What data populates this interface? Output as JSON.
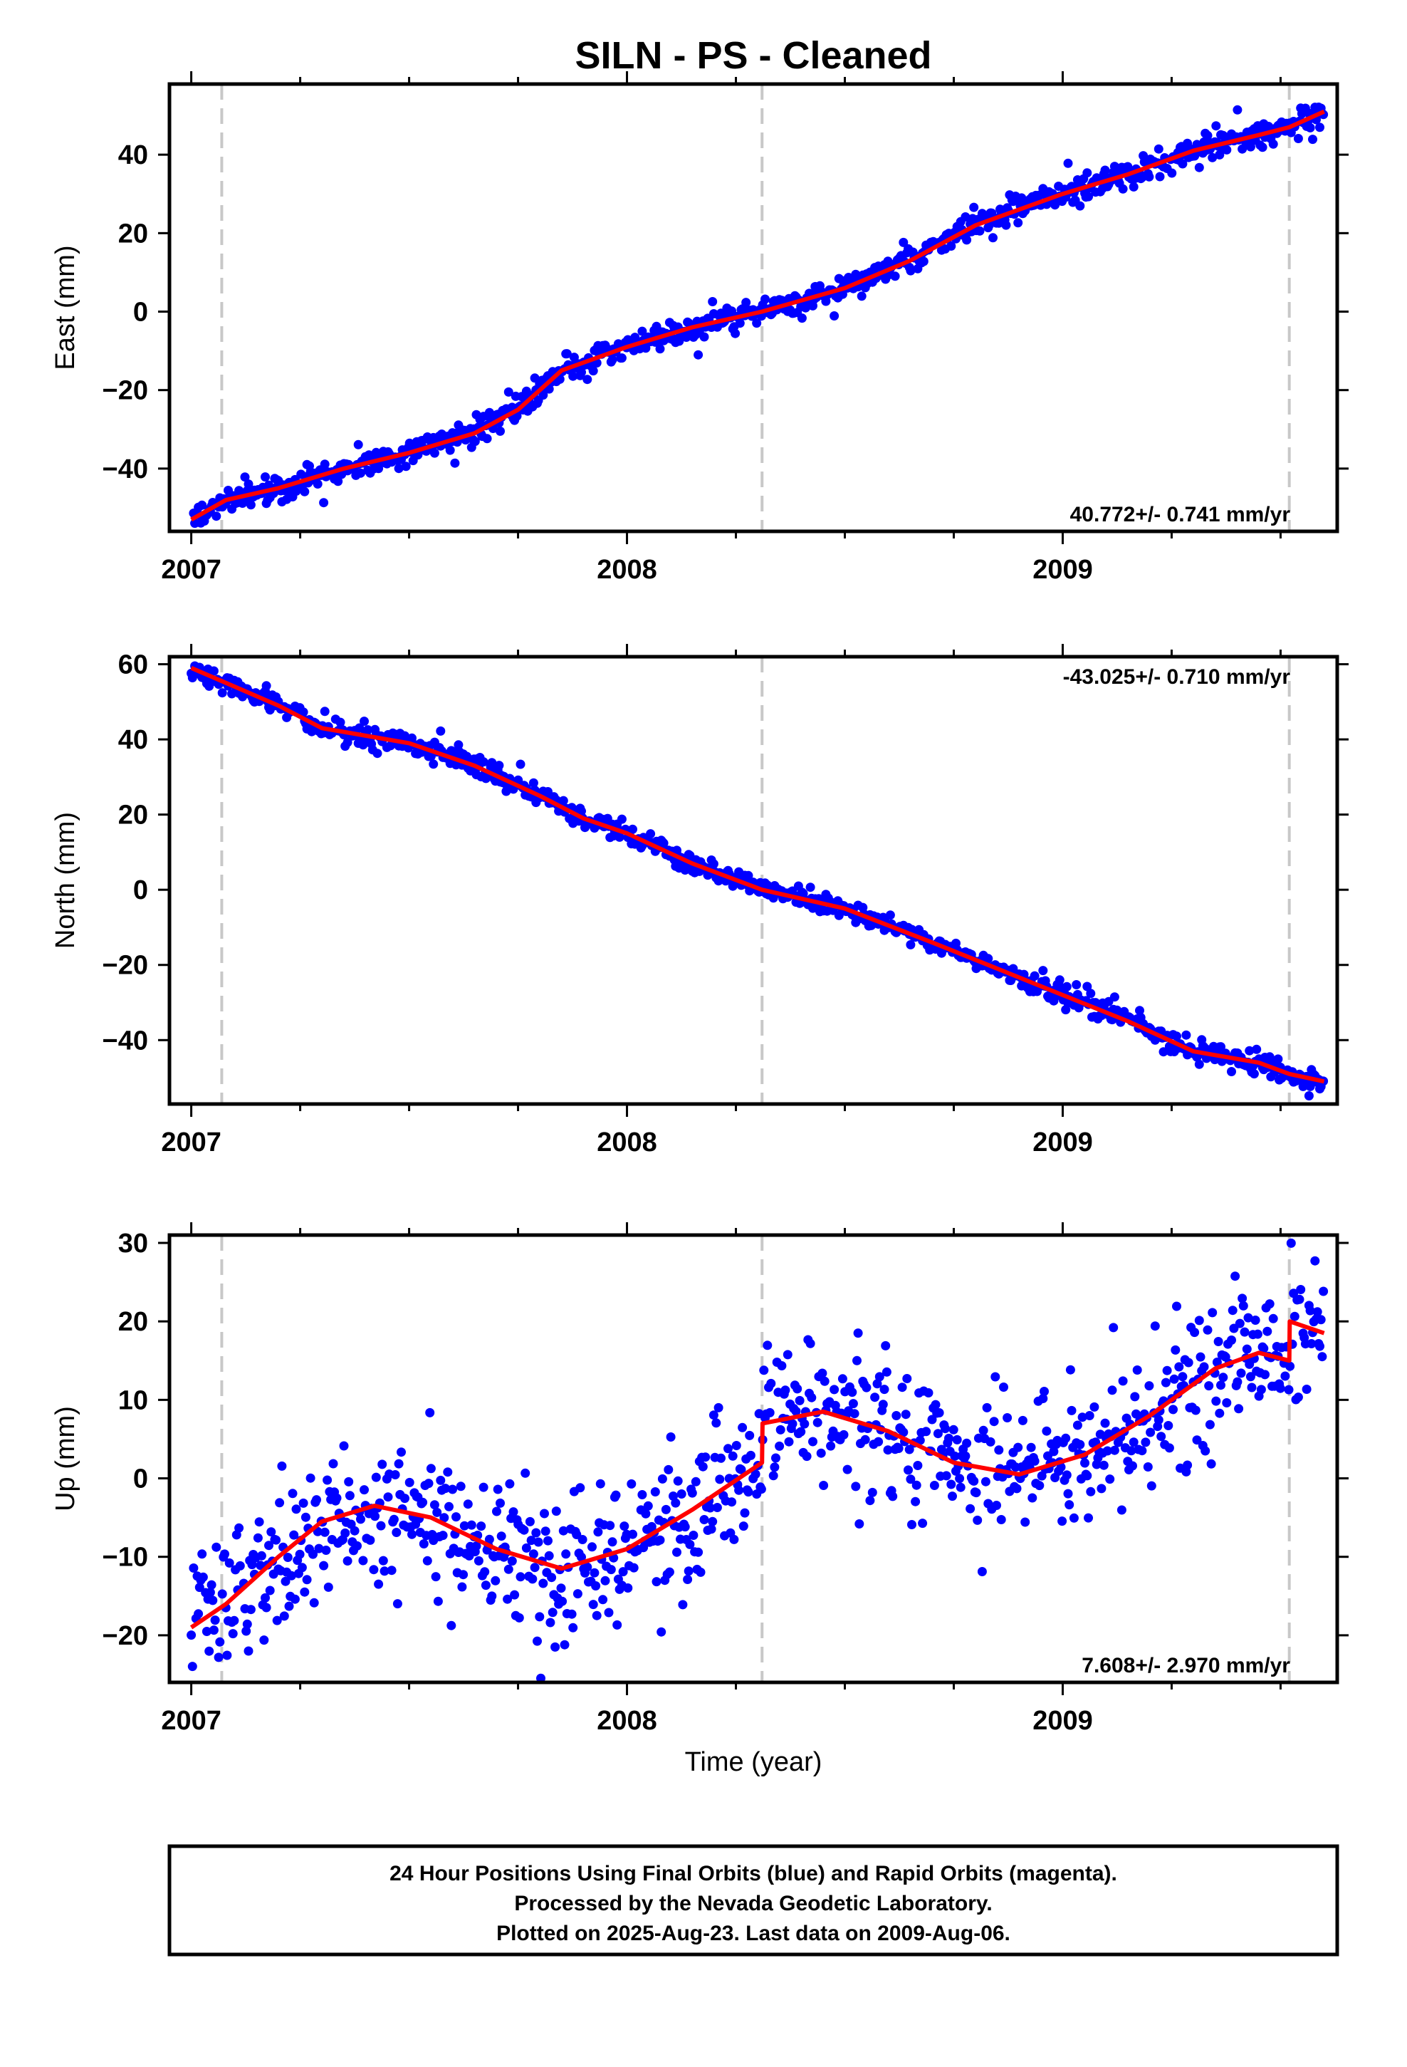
{
  "title": "SILN  - PS - Cleaned",
  "colors": {
    "final_orbits": "#0000ff",
    "model": "#ff0000",
    "breaks": "#c8c8c8",
    "frame": "#000000"
  },
  "footer": {
    "lines": [
      "24 Hour Positions Using Final Orbits (blue) and Rapid Orbits (magenta).",
      "Processed by the Nevada Geodetic Laboratory.",
      "Plotted on 2025-Aug-23. Last data on 2009-Aug-06."
    ]
  },
  "chart_data": [
    {
      "type": "scatter",
      "panel": "east",
      "ylabel": "East (mm)",
      "xlabel": "",
      "rate_label": "40.772+/- 0.741 mm/yr",
      "rate_position": "bottom-right",
      "xlim": [
        2006.95,
        2009.63
      ],
      "ylim": [
        -56,
        58
      ],
      "xticks": [
        2007,
        2008,
        2009
      ],
      "xtick_labels": [
        "2007",
        "2008",
        "2009"
      ],
      "yticks": [
        -40,
        -20,
        0,
        20,
        40
      ],
      "ytick_labels": [
        "−40",
        "−20",
        "0",
        "20",
        "40"
      ],
      "breaks": [
        2007.07,
        2008.31,
        2009.52
      ],
      "model": {
        "x": [
          2007.0,
          2007.08,
          2007.2,
          2007.35,
          2007.5,
          2007.65,
          2007.75,
          2007.85,
          2008.0,
          2008.15,
          2008.31,
          2008.5,
          2008.65,
          2008.8,
          2009.0,
          2009.15,
          2009.3,
          2009.45,
          2009.52,
          2009.6
        ],
        "y": [
          -53,
          -48,
          -45,
          -40,
          -36,
          -31,
          -25,
          -15,
          -9,
          -4,
          0,
          6,
          13,
          22,
          30,
          35,
          41,
          45,
          47,
          51
        ]
      },
      "series": [
        {
          "name": "Final Orbits",
          "noise_mm": 1.6,
          "outlier_rate": 0.03,
          "outlier_mm": 4
        }
      ]
    },
    {
      "type": "scatter",
      "panel": "north",
      "ylabel": "North (mm)",
      "xlabel": "",
      "rate_label": "-43.025+/- 0.710 mm/yr",
      "rate_position": "top-right",
      "xlim": [
        2006.95,
        2009.63
      ],
      "ylim": [
        -57,
        62
      ],
      "xticks": [
        2007,
        2008,
        2009
      ],
      "xtick_labels": [
        "2007",
        "2008",
        "2009"
      ],
      "yticks": [
        -40,
        -20,
        0,
        20,
        40,
        60
      ],
      "ytick_labels": [
        "−40",
        "−20",
        "0",
        "20",
        "40",
        "60"
      ],
      "breaks": [
        2007.07,
        2008.31,
        2009.52
      ],
      "model": {
        "x": [
          2007.0,
          2007.08,
          2007.2,
          2007.3,
          2007.5,
          2007.65,
          2007.8,
          2007.9,
          2008.0,
          2008.15,
          2008.31,
          2008.5,
          2008.7,
          2008.85,
          2009.0,
          2009.15,
          2009.3,
          2009.45,
          2009.52,
          2009.6
        ],
        "y": [
          59,
          55,
          49,
          43,
          39,
          33,
          25,
          19,
          15,
          7,
          0,
          -5,
          -14,
          -21,
          -28,
          -35,
          -43,
          -46,
          -49,
          -51
        ]
      },
      "series": [
        {
          "name": "Final Orbits",
          "noise_mm": 1.3,
          "outlier_rate": 0.03,
          "outlier_mm": 3
        }
      ]
    },
    {
      "type": "scatter",
      "panel": "up",
      "ylabel": "Up (mm)",
      "xlabel": "Time (year)",
      "rate_label": "7.608+/- 2.970 mm/yr",
      "rate_position": "bottom-right",
      "xlim": [
        2006.95,
        2009.63
      ],
      "ylim": [
        -26,
        31
      ],
      "xticks": [
        2007,
        2008,
        2009
      ],
      "xtick_labels": [
        "2007",
        "2008",
        "2009"
      ],
      "yticks": [
        -20,
        -10,
        0,
        10,
        20,
        30
      ],
      "ytick_labels": [
        "−20",
        "−10",
        "0",
        "10",
        "20",
        "30"
      ],
      "breaks": [
        2007.07,
        2008.31,
        2009.52
      ],
      "model": {
        "x": [
          2007.0,
          2007.08,
          2007.2,
          2007.3,
          2007.42,
          2007.55,
          2007.7,
          2007.85,
          2008.0,
          2008.15,
          2008.31,
          2008.311,
          2008.45,
          2008.6,
          2008.75,
          2008.9,
          2009.05,
          2009.2,
          2009.35,
          2009.45,
          2009.52,
          2009.521,
          2009.6
        ],
        "y": [
          -19,
          -16,
          -10,
          -5.5,
          -3.5,
          -5,
          -9,
          -11.5,
          -9,
          -4,
          2,
          7,
          8.5,
          6,
          2,
          0.5,
          3,
          8,
          14,
          16,
          15,
          20,
          18.5
        ]
      },
      "series": [
        {
          "name": "Final Orbits",
          "noise_mm": 4.5,
          "outlier_rate": 0.02,
          "outlier_mm": 8
        }
      ]
    }
  ]
}
